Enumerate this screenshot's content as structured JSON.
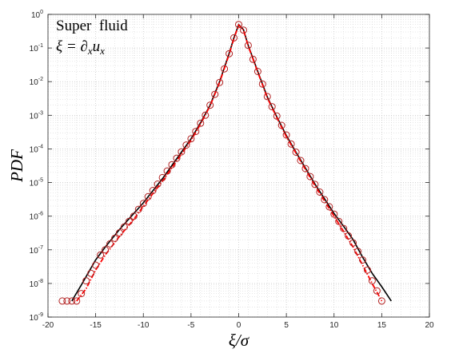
{
  "chart_data": {
    "type": "scatter",
    "title": "",
    "xlabel": "ξ/σ",
    "ylabel": "PDF",
    "annotations": [
      "Super  fluid",
      "ξ = ∂xux"
    ],
    "xlim": [
      -20,
      20
    ],
    "ylim": [
      1e-09,
      1
    ],
    "y_scale": "log",
    "grid": "on (major and minor, dotted)",
    "x_ticks": [
      "-20",
      "-15",
      "-10",
      "-5",
      "0",
      "5",
      "10",
      "15",
      "20"
    ],
    "y_ticks": [
      {
        "mantissa": "10",
        "exp": "0",
        "value": 1
      },
      {
        "mantissa": "10",
        "exp": "-1",
        "value": 0.1
      },
      {
        "mantissa": "10",
        "exp": "-2",
        "value": 0.01
      },
      {
        "mantissa": "10",
        "exp": "-3",
        "value": 0.001
      },
      {
        "mantissa": "10",
        "exp": "-4",
        "value": 0.0001
      },
      {
        "mantissa": "10",
        "exp": "-5",
        "value": 1e-05
      },
      {
        "mantissa": "10",
        "exp": "-6",
        "value": 1e-06
      },
      {
        "mantissa": "10",
        "exp": "-7",
        "value": 1e-07
      },
      {
        "mantissa": "10",
        "exp": "-8",
        "value": 1e-08
      },
      {
        "mantissa": "10",
        "exp": "-9",
        "value": 1e-09
      }
    ],
    "series": [
      {
        "style": "solid line",
        "color": "#000000",
        "points": [
          [
            -17.5,
            3e-09
          ],
          [
            -16.5,
            9e-09
          ],
          [
            -15,
            5e-08
          ],
          [
            -14,
            1.2e-07
          ],
          [
            -12.5,
            4e-07
          ],
          [
            -11,
            1.2e-06
          ],
          [
            -10,
            2.5e-06
          ],
          [
            -8,
            1.3e-05
          ],
          [
            -6,
            8e-05
          ],
          [
            -5,
            0.0002
          ],
          [
            -4,
            0.0006
          ],
          [
            -3,
            0.002
          ],
          [
            -2,
            0.01
          ],
          [
            -1,
            0.07
          ],
          [
            -0.5,
            0.2
          ],
          [
            0,
            0.5
          ],
          [
            0.5,
            0.35
          ],
          [
            1,
            0.12
          ],
          [
            2,
            0.02
          ],
          [
            3,
            0.0035
          ],
          [
            4,
            0.0009
          ],
          [
            5,
            0.00025
          ],
          [
            6,
            8e-05
          ],
          [
            8,
            9e-06
          ],
          [
            10,
            1.2e-06
          ],
          [
            11,
            5e-07
          ],
          [
            12,
            2e-07
          ],
          [
            13,
            6e-08
          ],
          [
            14,
            2e-08
          ],
          [
            15,
            8e-09
          ],
          [
            16,
            3e-09
          ]
        ]
      },
      {
        "style": "dash-dot line",
        "color": "#ff0000",
        "points": [
          [
            -17,
            3e-09
          ],
          [
            -16,
            7e-09
          ],
          [
            -15,
            2.5e-08
          ],
          [
            -14,
            7e-08
          ],
          [
            -12.5,
            2.5e-07
          ],
          [
            -11,
            8e-07
          ],
          [
            -10,
            2e-06
          ],
          [
            -8,
            1.1e-05
          ],
          [
            -6,
            7e-05
          ],
          [
            -5,
            0.00018
          ],
          [
            -4,
            0.00055
          ],
          [
            -3,
            0.0019
          ],
          [
            -2,
            0.0095
          ],
          [
            -1,
            0.065
          ],
          [
            -0.5,
            0.19
          ],
          [
            0,
            0.48
          ],
          [
            0.5,
            0.34
          ],
          [
            1,
            0.115
          ],
          [
            2,
            0.019
          ],
          [
            3,
            0.0033
          ],
          [
            4,
            0.00085
          ],
          [
            5,
            0.00023
          ],
          [
            6,
            7.5e-05
          ],
          [
            8,
            8e-06
          ],
          [
            10,
            1e-06
          ],
          [
            11,
            3.5e-07
          ],
          [
            12,
            1.2e-07
          ],
          [
            13,
            3.5e-08
          ],
          [
            14,
            1e-08
          ],
          [
            15,
            3e-09
          ]
        ]
      },
      {
        "style": "open circle markers",
        "color": "#b22222",
        "points": [
          [
            -18.5,
            3e-09
          ],
          [
            -18,
            3e-09
          ],
          [
            -17.5,
            3e-09
          ],
          [
            -17,
            3e-09
          ],
          [
            -16.5,
            5e-09
          ],
          [
            -16,
            1.2e-08
          ],
          [
            -15.5,
            2e-08
          ],
          [
            -15,
            3.5e-08
          ],
          [
            -14.5,
            7e-08
          ],
          [
            -14,
            1e-07
          ],
          [
            -13.5,
            1.5e-07
          ],
          [
            -13,
            2.2e-07
          ],
          [
            -12.5,
            3.2e-07
          ],
          [
            -12,
            4.8e-07
          ],
          [
            -11.5,
            7e-07
          ],
          [
            -11,
            1e-06
          ],
          [
            -10.5,
            1.6e-06
          ],
          [
            -10,
            2.4e-06
          ],
          [
            -9.5,
            3.8e-06
          ],
          [
            -9,
            5.8e-06
          ],
          [
            -8.5,
            9e-06
          ],
          [
            -8,
            1.4e-05
          ],
          [
            -7.5,
            2.2e-05
          ],
          [
            -7,
            3.4e-05
          ],
          [
            -6.5,
            5.3e-05
          ],
          [
            -6,
            8.2e-05
          ],
          [
            -5.5,
            0.00013
          ],
          [
            -5,
            0.0002
          ],
          [
            -4.5,
            0.00033
          ],
          [
            -4,
            0.00058
          ],
          [
            -3.5,
            0.001
          ],
          [
            -3,
            0.002
          ],
          [
            -2.5,
            0.0042
          ],
          [
            -2,
            0.0095
          ],
          [
            -1.5,
            0.024
          ],
          [
            -1,
            0.068
          ],
          [
            -0.5,
            0.2
          ],
          [
            0,
            0.5
          ],
          [
            0.5,
            0.34
          ],
          [
            1,
            0.12
          ],
          [
            1.5,
            0.046
          ],
          [
            2,
            0.02
          ],
          [
            2.5,
            0.0085
          ],
          [
            3,
            0.0036
          ],
          [
            3.5,
            0.0018
          ],
          [
            4,
            0.00095
          ],
          [
            4.5,
            0.0005
          ],
          [
            5,
            0.00026
          ],
          [
            5.5,
            0.00014
          ],
          [
            6,
            8e-05
          ],
          [
            6.5,
            4.5e-05
          ],
          [
            7,
            2.6e-05
          ],
          [
            7.5,
            1.5e-05
          ],
          [
            8,
            8.8e-06
          ],
          [
            8.5,
            5.2e-06
          ],
          [
            9,
            3.1e-06
          ],
          [
            9.5,
            1.9e-06
          ],
          [
            10,
            1.15e-06
          ],
          [
            10.5,
            7e-07
          ],
          [
            11,
            4.3e-07
          ],
          [
            11.5,
            2.6e-07
          ],
          [
            12,
            1.6e-07
          ],
          [
            12.5,
            9e-08
          ],
          [
            13,
            5e-08
          ],
          [
            13.5,
            2.5e-08
          ],
          [
            14,
            1.2e-08
          ],
          [
            14.5,
            6e-09
          ],
          [
            15,
            3e-09
          ]
        ]
      }
    ]
  }
}
